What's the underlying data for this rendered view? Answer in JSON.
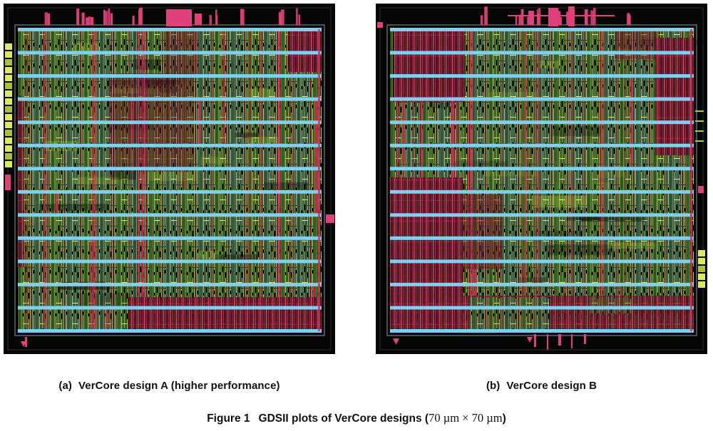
{
  "figure": {
    "panel_a": {
      "label": "(a)",
      "caption": "VerCore design A (higher performance)"
    },
    "panel_b": {
      "label": "(b)",
      "caption": "VerCore design B"
    },
    "caption": {
      "label": "Figure 1",
      "title": "GDSII plots of VerCore designs (",
      "dimensions": "70 µm × 70 µm",
      "suffix": ")"
    }
  },
  "colors": {
    "background": "#060606",
    "cell_green": "#8cc92b",
    "rail_cyan": "#7dd0ef",
    "net_magenta": "#ce2a62",
    "pad_pink": "#e0417c",
    "edge_yellow": "#dbe95f"
  }
}
